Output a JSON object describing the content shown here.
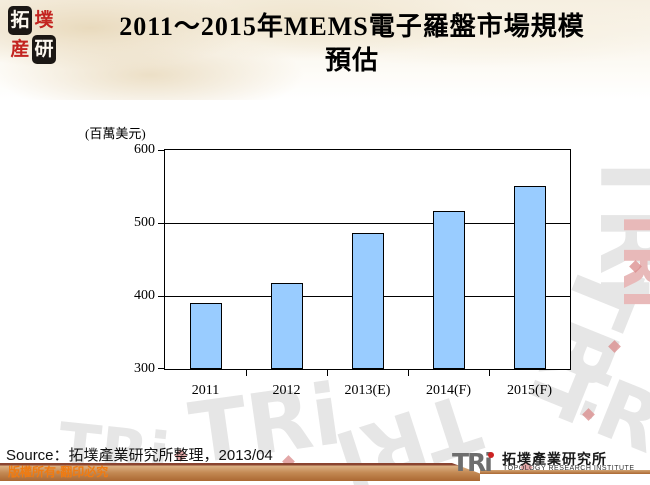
{
  "header": {
    "logo_chars": [
      "拓",
      "墣",
      "産",
      "研"
    ],
    "title_line1": "2011～2015年MEMS電子羅盤市場規模",
    "title_line2": "預估"
  },
  "chart_data": {
    "type": "bar",
    "title": "2011～2015年MEMS電子羅盤市場規模預估",
    "xlabel": "",
    "ylabel": "(百萬美元)",
    "categories": [
      "2011",
      "2012",
      "2013(E)",
      "2014(F)",
      "2015(F)"
    ],
    "values": [
      390,
      418,
      486,
      517,
      551
    ],
    "ylim": [
      300,
      600
    ],
    "yticks": [
      300,
      400,
      500,
      600
    ],
    "grid": true,
    "legend": false,
    "bar_color": "#99CCFF",
    "bar_border_color": "#000000"
  },
  "footer": {
    "source": "Source：拓墣產業研究所整理，2013/04",
    "copyright": "版權所有•翻印必究",
    "logo_mark": "TRi",
    "logo_cjk": "拓墣產業研究所",
    "logo_en": "TOPOLOGY RESEARCH INSTITUTE",
    "logo_dot_color": "#cc2222"
  },
  "watermark": {
    "text": "TRi",
    "color": "#e6e6e6",
    "accent_color": "#e8b9b9"
  }
}
